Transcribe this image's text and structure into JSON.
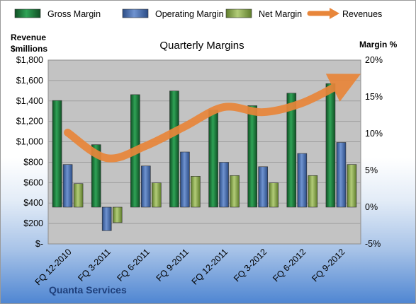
{
  "chart_data": {
    "type": "bar",
    "title": "Quarterly Margins",
    "categories": [
      "FQ 12-2010",
      "FQ 3-2011",
      "FQ 6-2011",
      "FQ 9-2011",
      "FQ 12-2011",
      "FQ 3-2012",
      "FQ 6-2012",
      "FQ 9-2012"
    ],
    "series": [
      {
        "name": "Gross Margin",
        "type": "bar",
        "axis": "right",
        "color": "#1e7a3e",
        "values": [
          14.5,
          8.5,
          15.3,
          15.8,
          13.2,
          13.8,
          15.5,
          16.8
        ]
      },
      {
        "name": "Operating Margin",
        "type": "bar",
        "axis": "right",
        "color": "#4a6fb0",
        "values": [
          5.8,
          -3.2,
          5.6,
          7.5,
          6.1,
          5.5,
          7.3,
          8.8
        ]
      },
      {
        "name": "Net Margin",
        "type": "bar",
        "axis": "right",
        "color": "#8aab4e",
        "values": [
          3.2,
          -2.1,
          3.3,
          4.2,
          4.3,
          3.3,
          4.3,
          5.8
        ]
      },
      {
        "name": "Revenues",
        "type": "line",
        "axis": "left",
        "color": "#e8863a",
        "values": [
          1090,
          840,
          960,
          1150,
          1340,
          1290,
          1380,
          1570
        ]
      }
    ],
    "left_axis": {
      "title": "Revenue\n$millions",
      "ylim": [
        0,
        1800
      ],
      "ticks": [
        0,
        200,
        400,
        600,
        800,
        1000,
        1200,
        1400,
        1600,
        1800
      ],
      "tick_labels": [
        "$-",
        "$200",
        "$400",
        "$600",
        "$800",
        "$1,000",
        "$1,200",
        "$1,400",
        "$1,600",
        "$1,800"
      ]
    },
    "right_axis": {
      "title": "Margin %",
      "ylim": [
        -5,
        20
      ],
      "ticks": [
        -5,
        0,
        5,
        10,
        15,
        20
      ],
      "tick_labels": [
        "-5%",
        "0%",
        "5%",
        "10%",
        "15%",
        "20%"
      ]
    },
    "legend_position": "top",
    "grid": true,
    "company": "Quanta Services"
  }
}
